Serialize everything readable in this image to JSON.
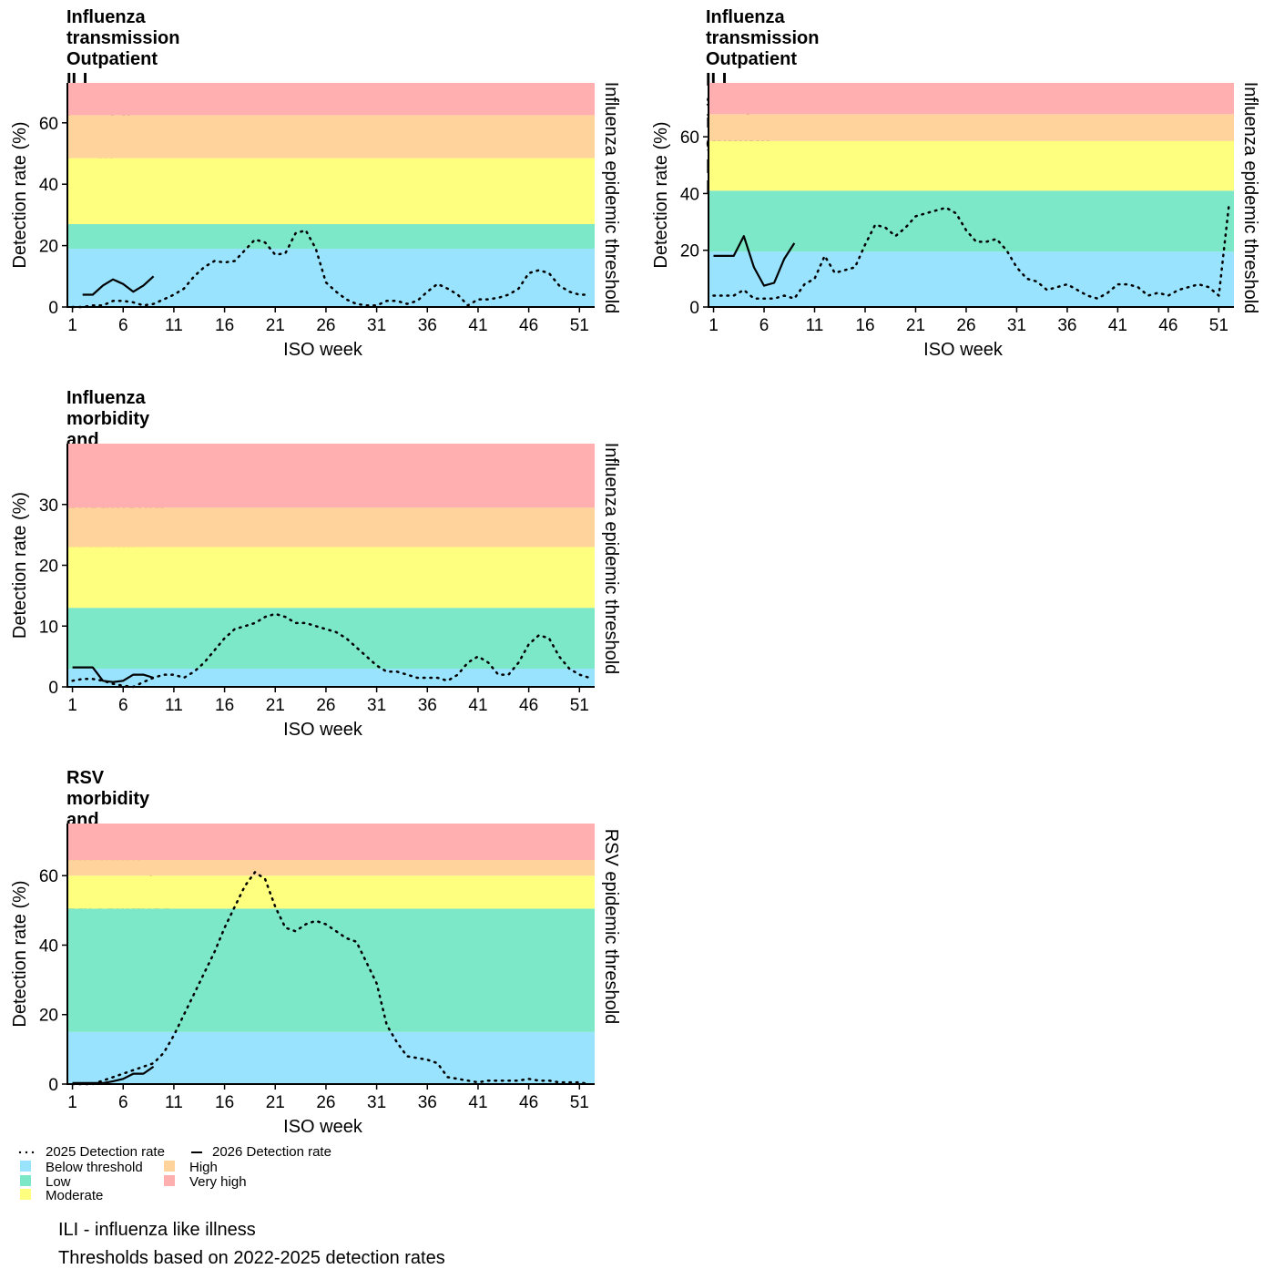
{
  "colors": {
    "below_threshold": "#99E3FF",
    "low": "#7CE8C8",
    "moderate": "#FFFF7F",
    "high": "#FFD39B",
    "very_high": "#FFAFB0",
    "line": "#000000"
  },
  "legend": {
    "series_2025": "2025 Detection rate",
    "series_2026": "2026 Detection rate",
    "below_threshold": "Below threshold",
    "low": "Low",
    "moderate": "Moderate",
    "high": "High",
    "very_high": "Very high"
  },
  "footnotes": {
    "line1": "ILI - influenza like illness",
    "line2": "Thresholds based on 2022-2025 detection rates"
  },
  "chart_data": [
    {
      "type": "line",
      "title": "Influenza transmission\nOutpatient ILI surveillance in public\nprimary health care clinics",
      "xlabel": "ISO week",
      "ylabel": "Detection rate (%)",
      "right_label": "Influenza epidemic threshold",
      "xlim": [
        0.5,
        52.5
      ],
      "ylim": [
        0,
        73
      ],
      "x_ticks": [
        1,
        6,
        11,
        16,
        21,
        26,
        31,
        36,
        41,
        46,
        51
      ],
      "y_ticks": [
        0,
        20,
        40,
        60
      ],
      "bands": [
        {
          "level": "below_threshold",
          "from": 0,
          "to": 19
        },
        {
          "level": "low",
          "from": 19,
          "to": 27
        },
        {
          "level": "moderate",
          "from": 27,
          "to": 48.5
        },
        {
          "level": "high",
          "from": 48.5,
          "to": 62.5
        },
        {
          "level": "very_high",
          "from": 62.5,
          "to": 73
        }
      ],
      "series": [
        {
          "name": "2025 Detection rate",
          "style": "dotted",
          "x": [
            1,
            2,
            3,
            4,
            5,
            6,
            7,
            8,
            9,
            10,
            11,
            12,
            13,
            14,
            15,
            16,
            17,
            18,
            19,
            20,
            21,
            22,
            23,
            24,
            25,
            26,
            27,
            28,
            29,
            30,
            31,
            32,
            33,
            34,
            35,
            36,
            37,
            38,
            39,
            40,
            41,
            42,
            43,
            44,
            45,
            46,
            47,
            48,
            49,
            50,
            51,
            52
          ],
          "y": [
            0,
            0,
            0.5,
            0.5,
            2,
            2,
            1.5,
            0.5,
            1,
            2.5,
            4,
            6,
            10,
            13,
            15,
            14.5,
            15,
            18.5,
            22,
            21,
            17,
            17.5,
            24,
            25,
            19,
            8,
            5,
            2.5,
            1,
            0.5,
            0.5,
            2,
            2,
            1,
            2,
            5,
            7.5,
            6,
            4,
            0.5,
            2.5,
            2.5,
            3,
            4,
            6,
            11,
            12,
            11,
            7,
            5,
            4,
            4
          ]
        },
        {
          "name": "2026 Detection rate",
          "style": "solid",
          "x": [
            2,
            3,
            4,
            5,
            6,
            7,
            8,
            9
          ],
          "y": [
            4,
            4,
            7,
            9,
            7.5,
            5,
            7,
            10
          ]
        }
      ]
    },
    {
      "type": "line",
      "title": "Influenza transmission\nOutpatient ILI surveillance in private general\npractitioner practices",
      "xlabel": "ISO week",
      "ylabel": "Detection rate (%)",
      "right_label": "Influenza epidemic threshold",
      "xlim": [
        0.5,
        52.5
      ],
      "ylim": [
        0,
        79
      ],
      "x_ticks": [
        1,
        6,
        11,
        16,
        21,
        26,
        31,
        36,
        41,
        46,
        51
      ],
      "y_ticks": [
        0,
        20,
        40,
        60
      ],
      "bands": [
        {
          "level": "below_threshold",
          "from": 0,
          "to": 19.5
        },
        {
          "level": "low",
          "from": 19.5,
          "to": 41
        },
        {
          "level": "moderate",
          "from": 41,
          "to": 58.5
        },
        {
          "level": "high",
          "from": 58.5,
          "to": 68
        },
        {
          "level": "very_high",
          "from": 68,
          "to": 79
        }
      ],
      "series": [
        {
          "name": "2025 Detection rate",
          "style": "dotted",
          "x": [
            1,
            2,
            3,
            4,
            5,
            6,
            7,
            8,
            9,
            10,
            11,
            12,
            13,
            14,
            15,
            16,
            17,
            18,
            19,
            20,
            21,
            22,
            23,
            24,
            25,
            26,
            27,
            28,
            29,
            30,
            31,
            32,
            33,
            34,
            35,
            36,
            37,
            38,
            39,
            40,
            41,
            42,
            43,
            44,
            45,
            46,
            47,
            48,
            49,
            50,
            51,
            52
          ],
          "y": [
            4,
            4,
            4,
            6,
            3,
            3,
            3,
            4,
            3,
            8,
            10,
            18,
            12,
            13,
            14,
            22,
            29,
            28,
            25,
            28,
            32,
            33,
            34,
            35,
            33,
            27,
            23,
            23,
            24,
            20,
            14,
            10,
            9,
            6,
            7,
            8,
            6,
            4,
            3,
            5,
            8,
            8,
            7,
            4,
            5,
            4,
            6,
            7,
            8,
            7,
            4,
            36
          ]
        },
        {
          "name": "2026 Detection rate",
          "style": "solid",
          "x": [
            1,
            2,
            3,
            4,
            5,
            6,
            7,
            8,
            9
          ],
          "y": [
            18,
            18,
            18,
            25,
            14,
            7.5,
            8.5,
            17,
            22.5
          ]
        }
      ]
    },
    {
      "type": "line",
      "title": "Influenza morbidity and mortality\nInpatient pneumonia surveillance in public hospitals",
      "xlabel": "ISO week",
      "ylabel": "Detection rate (%)",
      "right_label": "Influenza epidemic threshold",
      "xlim": [
        0.5,
        52.5
      ],
      "ylim": [
        0,
        40
      ],
      "x_ticks": [
        1,
        6,
        11,
        16,
        21,
        26,
        31,
        36,
        41,
        46,
        51
      ],
      "y_ticks": [
        0,
        10,
        20,
        30
      ],
      "bands": [
        {
          "level": "below_threshold",
          "from": 0,
          "to": 3
        },
        {
          "level": "low",
          "from": 3,
          "to": 13
        },
        {
          "level": "moderate",
          "from": 13,
          "to": 23
        },
        {
          "level": "high",
          "from": 23,
          "to": 29.5
        },
        {
          "level": "very_high",
          "from": 29.5,
          "to": 40
        }
      ],
      "series": [
        {
          "name": "2025 Detection rate",
          "style": "dotted",
          "x": [
            1,
            2,
            3,
            4,
            5,
            6,
            7,
            8,
            9,
            10,
            11,
            12,
            13,
            14,
            15,
            16,
            17,
            18,
            19,
            20,
            21,
            22,
            23,
            24,
            25,
            26,
            27,
            28,
            29,
            30,
            31,
            32,
            33,
            34,
            35,
            36,
            37,
            38,
            39,
            40,
            41,
            42,
            43,
            44,
            45,
            46,
            47,
            48,
            49,
            50,
            51,
            52
          ],
          "y": [
            1,
            1.3,
            1.3,
            1,
            0.5,
            0.2,
            0,
            0.8,
            1.5,
            2,
            2,
            1.5,
            2.5,
            4,
            6,
            8,
            9.5,
            10,
            10.5,
            11.5,
            12,
            11.5,
            10.5,
            10.5,
            10,
            9.5,
            9,
            8,
            6.5,
            5,
            3.5,
            2.5,
            2.5,
            2,
            1.5,
            1.5,
            1.5,
            1,
            2,
            4,
            5,
            4,
            2,
            2,
            4,
            7,
            8.5,
            8,
            5,
            3,
            2,
            1.5
          ]
        },
        {
          "name": "2026 Detection rate",
          "style": "solid",
          "x": [
            1,
            2,
            3,
            4,
            5,
            6,
            7,
            8,
            9
          ],
          "y": [
            3.2,
            3.2,
            3.2,
            1,
            0.8,
            1,
            2,
            2,
            1.5
          ]
        }
      ]
    },
    {
      "type": "line",
      "title": "RSV morbidity and mortality\nInpatient pneumonia surveillance in public hospitals",
      "xlabel": "ISO week",
      "ylabel": "Detection rate (%)",
      "right_label": "RSV epidemic threshold",
      "xlim": [
        0.5,
        52.5
      ],
      "ylim": [
        0,
        75
      ],
      "x_ticks": [
        1,
        6,
        11,
        16,
        21,
        26,
        31,
        36,
        41,
        46,
        51
      ],
      "y_ticks": [
        0,
        20,
        40,
        60
      ],
      "bands": [
        {
          "level": "below_threshold",
          "from": 0,
          "to": 15
        },
        {
          "level": "low",
          "from": 15,
          "to": 50.5
        },
        {
          "level": "moderate",
          "from": 50.5,
          "to": 60
        },
        {
          "level": "high",
          "from": 60,
          "to": 64.5
        },
        {
          "level": "very_high",
          "from": 64.5,
          "to": 75
        }
      ],
      "series": [
        {
          "name": "2025 Detection rate",
          "style": "dotted",
          "x": [
            1,
            2,
            3,
            4,
            5,
            6,
            7,
            8,
            9,
            10,
            11,
            12,
            13,
            14,
            15,
            16,
            17,
            18,
            19,
            20,
            21,
            22,
            23,
            24,
            25,
            26,
            27,
            28,
            29,
            30,
            31,
            32,
            33,
            34,
            35,
            36,
            37,
            38,
            39,
            40,
            41,
            42,
            43,
            44,
            45,
            46,
            47,
            48,
            49,
            50,
            51,
            52
          ],
          "y": [
            0,
            0,
            0,
            1,
            2,
            3,
            4,
            5,
            6,
            9,
            14,
            20,
            26,
            32,
            38,
            45,
            51,
            57,
            61,
            59,
            51,
            45,
            44,
            46,
            47,
            46,
            44,
            42,
            41,
            35,
            29,
            17,
            12,
            8,
            7.5,
            7,
            6,
            2,
            1.5,
            1,
            0.5,
            1,
            1,
            1,
            1,
            1.5,
            1,
            1,
            0.5,
            0.5,
            0.5,
            0
          ]
        },
        {
          "name": "2026 Detection rate",
          "style": "solid",
          "x": [
            1,
            2,
            3,
            4,
            5,
            6,
            7,
            8,
            9
          ],
          "y": [
            0.3,
            0.3,
            0.3,
            0.3,
            0.8,
            1.5,
            3,
            3,
            5
          ]
        }
      ]
    }
  ]
}
